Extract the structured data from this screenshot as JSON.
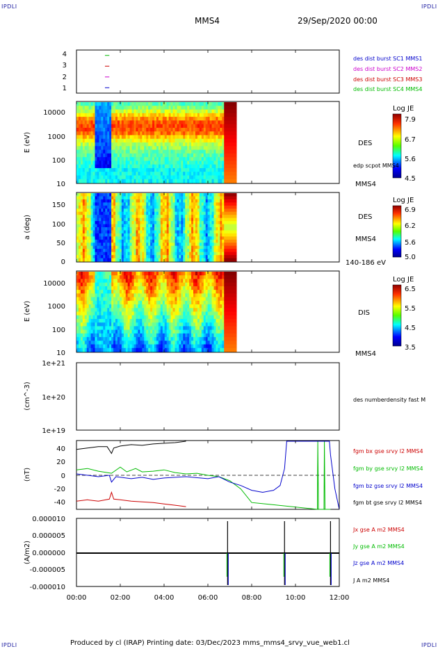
{
  "corner_labels": [
    "IPDLI",
    "IPDLI",
    "IPDLI",
    "IPDLI"
  ],
  "header": {
    "spacecraft": "MMS4",
    "date": "29/Sep/2020 00:00"
  },
  "footer": {
    "text": "Produced by cl (IRAP)   Printing date: 03/Dec/2023   mms_mms4_srvy_vue_web1.cl"
  },
  "colors": {
    "mms1": "#0000cc",
    "mms2": "#cc00cc",
    "mms3": "#cc0000",
    "mms4": "#00bb00",
    "bt": "#000000",
    "corner": "#1a1aa0"
  },
  "chart_data": [
    {
      "id": "burst",
      "type": "line",
      "ylim": [
        0.5,
        4.5
      ],
      "yticks": [
        "4",
        "3",
        "2",
        "1"
      ],
      "xlabel": "",
      "ylabel": "",
      "legend": [
        "des dist burst SC1 MMS1",
        "des dist burst SC2 MMS2",
        "des dist burst SC3 MMS3",
        "des dist burst SC4 MMS4"
      ],
      "series": [
        {
          "name": "des dist burst SC1 MMS1",
          "level": 1,
          "x": [
            1.3,
            1.5
          ]
        },
        {
          "name": "des dist burst SC2 MMS2",
          "level": 2,
          "x": [
            1.3,
            1.5
          ]
        },
        {
          "name": "des dist burst SC3 MMS3",
          "level": 3,
          "x": [
            1.3,
            1.5
          ]
        },
        {
          "name": "des dist burst SC4 MMS4",
          "level": 4,
          "x": [
            1.3,
            1.5
          ]
        }
      ]
    },
    {
      "id": "des_energy",
      "type": "heatmap",
      "ylabel": "E (eV)",
      "yscale": "log",
      "ylim": [
        10,
        30000
      ],
      "yticks": [
        "10000",
        "1000",
        "100",
        "10"
      ],
      "xlim_hours": [
        0,
        12
      ],
      "data_end_hours": 7.3,
      "right_labels": [
        "DES",
        "edp scpot MMS4",
        "MMS4"
      ],
      "colorbar": {
        "title": "Log JE",
        "ticks": [
          "7.9",
          "6.7",
          "5.6",
          "4.5"
        ],
        "range": [
          4.5,
          7.9
        ]
      }
    },
    {
      "id": "des_pitch",
      "type": "heatmap",
      "ylabel": "a (deg)",
      "ylim": [
        0,
        180
      ],
      "yticks": [
        "150",
        "100",
        "50",
        "0"
      ],
      "xlim_hours": [
        0,
        12
      ],
      "data_end_hours": 7.3,
      "right_labels": [
        "DES",
        "MMS4",
        "140-186 eV"
      ],
      "colorbar": {
        "title": "Log JE",
        "ticks": [
          "6.9",
          "6.2",
          "5.6",
          "5.0"
        ],
        "range": [
          5.0,
          6.9
        ]
      }
    },
    {
      "id": "dis_energy",
      "type": "heatmap",
      "ylabel": "E (eV)",
      "yscale": "log",
      "ylim": [
        10,
        30000
      ],
      "yticks": [
        "10000",
        "1000",
        "100",
        "10"
      ],
      "xlim_hours": [
        0,
        12
      ],
      "data_end_hours": 7.3,
      "right_labels": [
        "DIS",
        "MMS4"
      ],
      "colorbar": {
        "title": "Log JE",
        "ticks": [
          "6.5",
          "5.5",
          "4.5",
          "3.5"
        ],
        "range": [
          3.5,
          6.5
        ]
      }
    },
    {
      "id": "density",
      "type": "line",
      "ylabel": "(cm^-3)",
      "yscale": "log",
      "yticks": [
        "1e+21",
        "1e+20",
        "1e+19"
      ],
      "right_labels": [
        "des numberdensity fast M"
      ],
      "series": []
    },
    {
      "id": "bfield",
      "type": "line",
      "ylabel": "(nT)",
      "ylim": [
        -50,
        50
      ],
      "yticks": [
        "40",
        "20",
        "0",
        "-20",
        "-40"
      ],
      "zero_line": true,
      "legend": [
        "fgm bx gse srvy l2 MMS4",
        "fgm by gse srvy l2 MMS4",
        "fgm bz gse srvy l2 MMS4",
        "fgm bt gse srvy l2 MMS4"
      ],
      "series": [
        {
          "name": "fgm bt gse srvy l2 MMS4",
          "color": "#000000",
          "x": [
            0,
            0.5,
            1.0,
            1.4,
            1.6,
            1.7,
            2.0,
            2.5,
            3.0,
            3.5,
            4.0,
            4.5,
            5.0
          ],
          "y": [
            38,
            40,
            42,
            42,
            32,
            40,
            43,
            45,
            44,
            46,
            47,
            48,
            50
          ]
        },
        {
          "name": "fgm bx gse srvy l2 MMS4",
          "color": "#cc0000",
          "x": [
            0,
            0.5,
            1.0,
            1.5,
            1.6,
            1.7,
            2.0,
            2.5,
            3.0,
            3.5,
            4.0,
            4.5,
            5.0
          ],
          "y": [
            -38,
            -36,
            -38,
            -35,
            -25,
            -35,
            -36,
            -38,
            -39,
            -40,
            -42,
            -44,
            -46
          ]
        },
        {
          "name": "fgm by gse srvy l2 MMS4",
          "color": "#00bb00",
          "x": [
            0,
            0.5,
            1.0,
            1.6,
            2.0,
            2.3,
            2.7,
            3.0,
            3.5,
            4.0,
            4.5,
            5.0,
            5.5,
            6.0,
            6.5,
            7.0,
            7.5,
            8.0,
            11.0,
            11.02,
            11.05,
            11.3,
            11.32,
            11.35,
            11.6
          ],
          "y": [
            8,
            10,
            6,
            3,
            12,
            5,
            10,
            5,
            6,
            8,
            4,
            2,
            3,
            0,
            -2,
            -8,
            -20,
            -40,
            -50,
            50,
            -50,
            -50,
            50,
            -50,
            -50
          ]
        },
        {
          "name": "fgm bz gse srvy l2 MMS4",
          "color": "#0000cc",
          "x": [
            0,
            0.5,
            1.0,
            1.5,
            1.6,
            1.8,
            2.5,
            3.0,
            3.5,
            4.0,
            4.5,
            5.0,
            6.0,
            6.5,
            7.0,
            7.5,
            8.0,
            8.5,
            9.0,
            9.3,
            9.5,
            9.6,
            11.55,
            11.6,
            11.8,
            12.0
          ],
          "y": [
            2,
            0,
            -2,
            0,
            -10,
            -2,
            -5,
            -3,
            -6,
            -4,
            -3,
            -2,
            -5,
            -2,
            -10,
            -15,
            -22,
            -25,
            -22,
            -15,
            10,
            50,
            50,
            30,
            -20,
            -50
          ]
        }
      ]
    },
    {
      "id": "current",
      "type": "line",
      "ylabel": "(A/m2)",
      "ylim": [
        -1e-05,
        1e-05
      ],
      "yticks": [
        "0.000010",
        "0.000005",
        "0.000000",
        "-0.000005",
        "-0.000010"
      ],
      "xticks": [
        "00:00",
        "02:00",
        "04:00",
        "06:00",
        "08:00",
        "10:00",
        "12:00"
      ],
      "legend": [
        "Jx gse A m2 MMS4",
        "Jy gse A m2 MMS4",
        "Jz gse A m2 MMS4",
        "J A m2 MMS4"
      ],
      "spikes_hours": [
        6.9,
        9.5,
        11.6
      ]
    }
  ]
}
